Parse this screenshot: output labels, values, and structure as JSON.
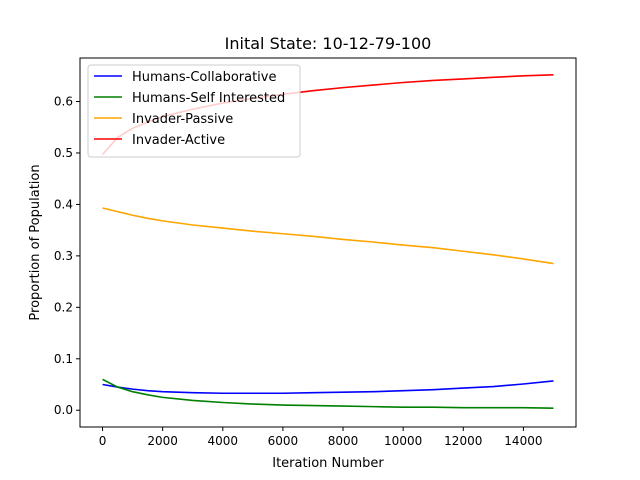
{
  "chart_data": {
    "type": "line",
    "title": "Inital State: 10-12-79-100",
    "xlabel": "Iteration Number",
    "ylabel": "Proportion of Population",
    "xlim": [
      -750,
      15750
    ],
    "ylim": [
      -0.0326,
      0.6846
    ],
    "x_ticks": [
      0,
      2000,
      4000,
      6000,
      8000,
      10000,
      12000,
      14000
    ],
    "y_ticks": [
      0.0,
      0.1,
      0.2,
      0.3,
      0.4,
      0.5,
      0.6
    ],
    "x_tick_labels": [
      "0",
      "2000",
      "4000",
      "6000",
      "8000",
      "10000",
      "12000",
      "14000"
    ],
    "y_tick_labels": [
      "0.0",
      "0.1",
      "0.2",
      "0.3",
      "0.4",
      "0.5",
      "0.6"
    ],
    "legend_position": "top-left",
    "grid": false,
    "x": [
      0,
      500,
      1000,
      1500,
      2000,
      3000,
      4000,
      5000,
      6000,
      7000,
      8000,
      9000,
      10000,
      11000,
      12000,
      13000,
      14000,
      15000
    ],
    "series": [
      {
        "name": "Humans-Collaborative",
        "color": "#0000ff",
        "values": [
          0.05,
          0.045,
          0.041,
          0.038,
          0.036,
          0.034,
          0.033,
          0.033,
          0.033,
          0.034,
          0.035,
          0.036,
          0.038,
          0.04,
          0.043,
          0.046,
          0.051,
          0.057
        ]
      },
      {
        "name": "Humans-Self Interested",
        "color": "#008000",
        "values": [
          0.06,
          0.045,
          0.036,
          0.03,
          0.025,
          0.019,
          0.015,
          0.012,
          0.01,
          0.009,
          0.008,
          0.007,
          0.006,
          0.006,
          0.005,
          0.005,
          0.005,
          0.004
        ]
      },
      {
        "name": "Invader-Passive",
        "color": "#ffa500",
        "values": [
          0.393,
          0.386,
          0.379,
          0.373,
          0.368,
          0.36,
          0.354,
          0.348,
          0.343,
          0.338,
          0.332,
          0.327,
          0.321,
          0.316,
          0.309,
          0.302,
          0.294,
          0.285
        ]
      },
      {
        "name": "Invader-Active",
        "color": "#ff0000",
        "values": [
          0.497,
          0.53,
          0.548,
          0.56,
          0.571,
          0.585,
          0.597,
          0.606,
          0.614,
          0.621,
          0.627,
          0.632,
          0.637,
          0.641,
          0.644,
          0.647,
          0.65,
          0.652
        ]
      }
    ]
  }
}
